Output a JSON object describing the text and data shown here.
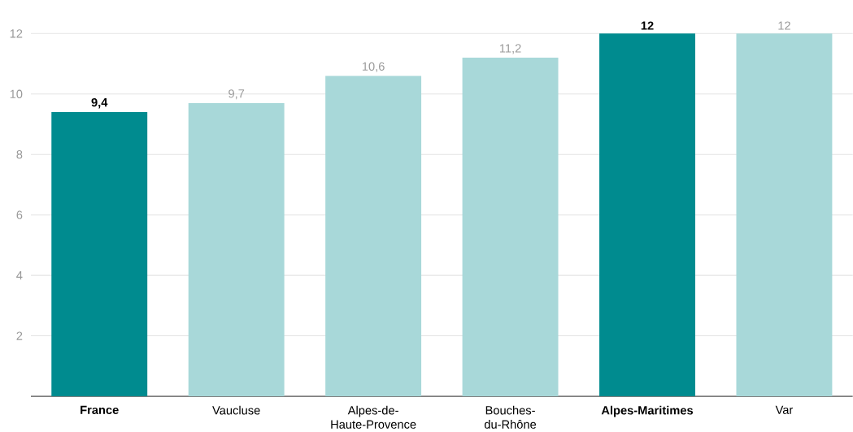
{
  "chart_data": {
    "type": "bar",
    "categories": [
      "France",
      "Vaucluse",
      "Alpes-de-Haute-Provence",
      "Bouches-du-Rhône",
      "Alpes-Maritimes",
      "Var"
    ],
    "values": [
      9.4,
      9.7,
      10.6,
      11.2,
      12,
      12
    ],
    "value_labels": [
      "9,4",
      "9,7",
      "10,6",
      "11,2",
      "12",
      "12"
    ],
    "colors": [
      "#008b8f",
      "#a8d8d9",
      "#a8d8d9",
      "#a8d8d9",
      "#008b8f",
      "#a8d8d9"
    ],
    "ylim": [
      0,
      12
    ],
    "yticks": [
      2,
      4,
      6,
      8,
      10,
      12
    ],
    "grid": "y"
  }
}
